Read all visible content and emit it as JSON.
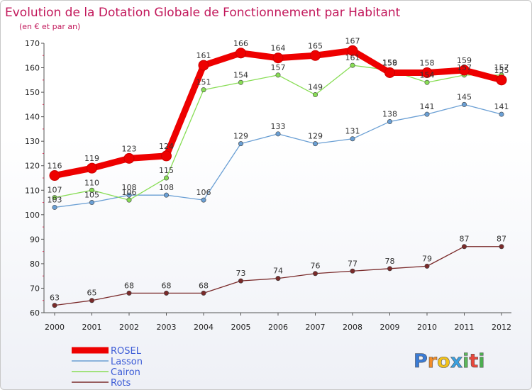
{
  "chart_data": {
    "type": "line",
    "title": "Evolution de la Dotation Globale de Fonctionnement par Habitant",
    "subtitle": "(en € et par an)",
    "categories": [
      "2000",
      "2001",
      "2002",
      "2003",
      "2004",
      "2005",
      "2006",
      "2007",
      "2008",
      "2009",
      "2010",
      "2011",
      "2012"
    ],
    "ylim": [
      60,
      170
    ],
    "yticks": [
      60,
      70,
      80,
      90,
      100,
      110,
      120,
      130,
      140,
      150,
      160,
      170
    ],
    "grid": false,
    "legend_position": "bottom-left",
    "series": [
      {
        "name": "ROSEL",
        "color": "#ee0000",
        "values": [
          116,
          119,
          123,
          124,
          161,
          166,
          164,
          165,
          167,
          158,
          158,
          159,
          155
        ]
      },
      {
        "name": "Lasson",
        "color": "#6a9fd4",
        "values": [
          103,
          105,
          108,
          108,
          106,
          129,
          133,
          129,
          131,
          138,
          141,
          145,
          141
        ]
      },
      {
        "name": "Cairon",
        "color": "#88dd55",
        "values": [
          107,
          110,
          106,
          115,
          151,
          154,
          157,
          149,
          161,
          159,
          154,
          157,
          157
        ]
      },
      {
        "name": "Rots",
        "color": "#7a2a2a",
        "values": [
          63,
          65,
          68,
          68,
          68,
          73,
          74,
          76,
          77,
          78,
          79,
          87,
          87
        ]
      }
    ]
  },
  "logo": {
    "letters": [
      "P",
      "r",
      "o",
      "x",
      "i",
      "t",
      "i"
    ],
    "colors": [
      "#3a7bd5",
      "#f28c28",
      "#f2c21b",
      "#3aa0e0",
      "#5cb85c",
      "#e8473c",
      "#4caf50"
    ]
  }
}
